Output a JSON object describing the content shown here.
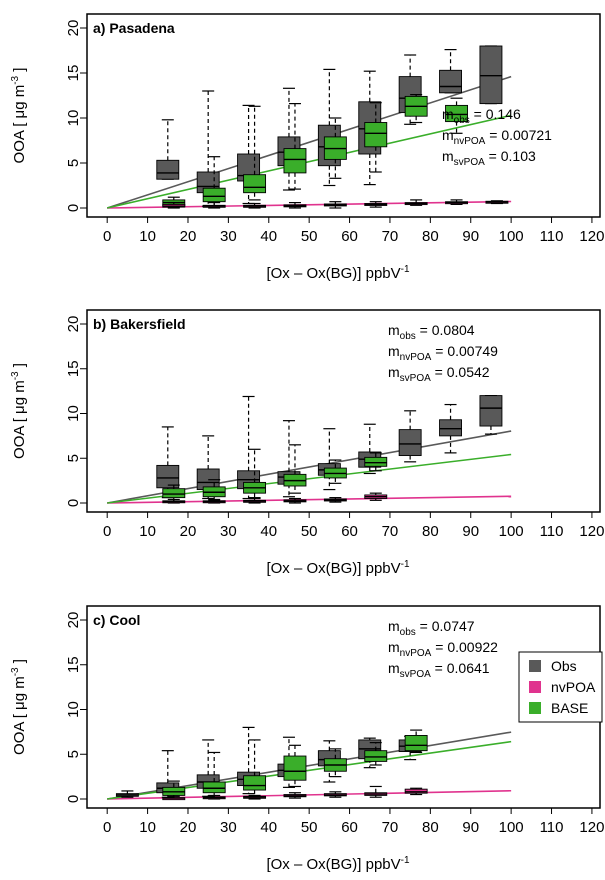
{
  "colors": {
    "obs": "#595959",
    "nvpoa": "#e0338e",
    "base": "#3aae2a"
  },
  "legend": [
    {
      "label": "Obs",
      "color": "#595959"
    },
    {
      "label": "nvPOA",
      "color": "#e0338e"
    },
    {
      "label": "BASE",
      "color": "#3aae2a"
    }
  ],
  "axis_labels": {
    "y": "OOA [ μg m",
    "y_sup": "-3",
    "y_end": " ]",
    "x": "[Ox – Ox(BG)] ppbV",
    "x_sup": "-1"
  },
  "chart_data": [
    {
      "type": "boxplot",
      "title": "a) Pasadena",
      "xlim": [
        0,
        120
      ],
      "ylim": [
        0,
        20
      ],
      "xticks": [
        "0",
        "10",
        "20",
        "30",
        "40",
        "50",
        "60",
        "70",
        "80",
        "90",
        "100",
        "110",
        "120"
      ],
      "yticks": [
        "0",
        "5",
        "10",
        "15",
        "20"
      ],
      "slopes": [
        {
          "base": "m",
          "sub": "obs",
          "value": "= 0.146",
          "color": "#595959",
          "m": 0.146
        },
        {
          "base": "m",
          "sub": "nvPOA",
          "value": "= 0.00721",
          "color": "#e0338e",
          "m": 0.00721
        },
        {
          "base": "m",
          "sub": "svPOA",
          "value": "= 0.103",
          "color": "#3aae2a",
          "m": 0.103
        }
      ],
      "series": [
        {
          "key": "obs",
          "boxes": [
            {
              "x": 15,
              "lo": 3.2,
              "q1": 3.2,
              "med": 3.9,
              "q3": 5.3,
              "hi": 9.8
            },
            {
              "x": 25,
              "lo": 0.2,
              "q1": 1.7,
              "med": 2.4,
              "q3": 4.0,
              "hi": 13.0
            },
            {
              "x": 35,
              "lo": 0.5,
              "q1": 3.0,
              "med": 3.6,
              "q3": 6.0,
              "hi": 11.4
            },
            {
              "x": 45,
              "lo": 2.0,
              "q1": 4.7,
              "med": 6.2,
              "q3": 7.9,
              "hi": 13.3
            },
            {
              "x": 55,
              "lo": 2.5,
              "q1": 4.7,
              "med": 6.8,
              "q3": 9.2,
              "hi": 15.4
            },
            {
              "x": 65,
              "lo": 2.6,
              "q1": 6.0,
              "med": 8.8,
              "q3": 11.8,
              "hi": 15.2
            },
            {
              "x": 75,
              "lo": 9.3,
              "q1": 10.6,
              "med": 12.2,
              "q3": 14.6,
              "hi": 17.0
            },
            {
              "x": 85,
              "lo": 12.8,
              "q1": 12.8,
              "med": 13.5,
              "q3": 15.3,
              "hi": 17.6
            },
            {
              "x": 95,
              "lo": 11.6,
              "q1": 11.6,
              "med": 14.7,
              "q3": 18.0,
              "hi": 18.0
            }
          ]
        },
        {
          "key": "nvpoa",
          "boxes": [
            {
              "x": 15,
              "lo": 0.0,
              "q1": 0.1,
              "med": 0.2,
              "q3": 0.4,
              "hi": 0.6
            },
            {
              "x": 25,
              "lo": 0.0,
              "q1": 0.1,
              "med": 0.2,
              "q3": 0.3,
              "hi": 0.6
            },
            {
              "x": 35,
              "lo": 0.0,
              "q1": 0.1,
              "med": 0.2,
              "q3": 0.3,
              "hi": 0.5
            },
            {
              "x": 45,
              "lo": 0.0,
              "q1": 0.2,
              "med": 0.25,
              "q3": 0.35,
              "hi": 0.6
            },
            {
              "x": 55,
              "lo": 0.0,
              "q1": 0.25,
              "med": 0.35,
              "q3": 0.45,
              "hi": 0.7
            },
            {
              "x": 65,
              "lo": 0.1,
              "q1": 0.3,
              "med": 0.4,
              "q3": 0.5,
              "hi": 0.7
            },
            {
              "x": 75,
              "lo": 0.3,
              "q1": 0.4,
              "med": 0.5,
              "q3": 0.6,
              "hi": 0.9
            },
            {
              "x": 85,
              "lo": 0.4,
              "q1": 0.5,
              "med": 0.6,
              "q3": 0.7,
              "hi": 0.9
            },
            {
              "x": 95,
              "lo": 0.5,
              "q1": 0.6,
              "med": 0.65,
              "q3": 0.75,
              "hi": 0.8
            }
          ]
        },
        {
          "key": "base",
          "boxes": [
            {
              "x": 15,
              "lo": 0.1,
              "q1": 0.2,
              "med": 0.6,
              "q3": 0.9,
              "hi": 1.2
            },
            {
              "x": 25,
              "lo": 0.2,
              "q1": 0.7,
              "med": 1.3,
              "q3": 2.2,
              "hi": 5.7
            },
            {
              "x": 35,
              "lo": 0.9,
              "q1": 1.7,
              "med": 2.3,
              "q3": 3.7,
              "hi": 11.3
            },
            {
              "x": 45,
              "lo": 2.1,
              "q1": 3.9,
              "med": 5.4,
              "q3": 6.6,
              "hi": 11.6
            },
            {
              "x": 55,
              "lo": 3.3,
              "q1": 5.4,
              "med": 6.6,
              "q3": 7.9,
              "hi": 10.0
            },
            {
              "x": 65,
              "lo": 4.0,
              "q1": 6.8,
              "med": 8.3,
              "q3": 9.5,
              "hi": 11.7
            },
            {
              "x": 75,
              "lo": 9.5,
              "q1": 10.2,
              "med": 11.3,
              "q3": 12.4,
              "hi": 12.6
            },
            {
              "x": 85,
              "lo": 8.3,
              "q1": 9.6,
              "med": 10.4,
              "q3": 11.4,
              "hi": 12.2
            }
          ]
        }
      ]
    },
    {
      "type": "boxplot",
      "title": "b) Bakersfield",
      "xlim": [
        0,
        120
      ],
      "ylim": [
        0,
        20
      ],
      "xticks": [
        "0",
        "10",
        "20",
        "30",
        "40",
        "50",
        "60",
        "70",
        "80",
        "90",
        "100",
        "110",
        "120"
      ],
      "yticks": [
        "0",
        "5",
        "10",
        "15",
        "20"
      ],
      "slopes": [
        {
          "base": "m",
          "sub": "obs",
          "value": "= 0.0804",
          "color": "#595959",
          "m": 0.0804
        },
        {
          "base": "m",
          "sub": "nvPOA",
          "value": "= 0.00749",
          "color": "#e0338e",
          "m": 0.00749
        },
        {
          "base": "m",
          "sub": "svPOA",
          "value": "= 0.0542",
          "color": "#3aae2a",
          "m": 0.0542
        }
      ],
      "series": [
        {
          "key": "obs",
          "boxes": [
            {
              "x": 15,
              "lo": 0.6,
              "q1": 1.7,
              "med": 2.8,
              "q3": 4.2,
              "hi": 8.5
            },
            {
              "x": 25,
              "lo": 0.5,
              "q1": 1.5,
              "med": 2.3,
              "q3": 3.8,
              "hi": 7.5
            },
            {
              "x": 35,
              "lo": 0.5,
              "q1": 1.6,
              "med": 2.6,
              "q3": 3.6,
              "hi": 11.9
            },
            {
              "x": 45,
              "lo": 0.7,
              "q1": 2.1,
              "med": 2.9,
              "q3": 3.5,
              "hi": 9.2
            },
            {
              "x": 55,
              "lo": 1.5,
              "q1": 3.1,
              "med": 3.7,
              "q3": 4.4,
              "hi": 8.3
            },
            {
              "x": 65,
              "lo": 3.3,
              "q1": 4.0,
              "med": 4.9,
              "q3": 5.7,
              "hi": 8.8
            },
            {
              "x": 75,
              "lo": 4.6,
              "q1": 5.3,
              "med": 6.6,
              "q3": 8.2,
              "hi": 10.3
            },
            {
              "x": 85,
              "lo": 5.6,
              "q1": 7.5,
              "med": 8.3,
              "q3": 9.3,
              "hi": 11.0
            },
            {
              "x": 95,
              "lo": 7.7,
              "q1": 8.6,
              "med": 10.6,
              "q3": 12.0,
              "hi": 12.0
            }
          ]
        },
        {
          "key": "nvpoa",
          "boxes": [
            {
              "x": 15,
              "lo": 0.0,
              "q1": 0.1,
              "med": 0.15,
              "q3": 0.25,
              "hi": 0.4
            },
            {
              "x": 25,
              "lo": 0.0,
              "q1": 0.1,
              "med": 0.15,
              "q3": 0.25,
              "hi": 0.4
            },
            {
              "x": 35,
              "lo": 0.0,
              "q1": 0.1,
              "med": 0.2,
              "q3": 0.3,
              "hi": 0.5
            },
            {
              "x": 45,
              "lo": 0.0,
              "q1": 0.15,
              "med": 0.25,
              "q3": 0.35,
              "hi": 0.5
            },
            {
              "x": 55,
              "lo": 0.1,
              "q1": 0.25,
              "med": 0.35,
              "q3": 0.45,
              "hi": 0.6
            },
            {
              "x": 65,
              "lo": 0.3,
              "q1": 0.5,
              "med": 0.7,
              "q3": 0.9,
              "hi": 1.1
            }
          ]
        },
        {
          "key": "base",
          "boxes": [
            {
              "x": 15,
              "lo": 0.2,
              "q1": 0.6,
              "med": 1.0,
              "q3": 1.6,
              "hi": 2.0
            },
            {
              "x": 25,
              "lo": 0.3,
              "q1": 0.7,
              "med": 1.2,
              "q3": 1.8,
              "hi": 2.6
            },
            {
              "x": 35,
              "lo": 0.6,
              "q1": 1.1,
              "med": 1.7,
              "q3": 2.3,
              "hi": 6.0
            },
            {
              "x": 45,
              "lo": 1.1,
              "q1": 1.9,
              "med": 2.5,
              "q3": 3.2,
              "hi": 6.5
            },
            {
              "x": 55,
              "lo": 2.2,
              "q1": 2.8,
              "med": 3.3,
              "q3": 3.9,
              "hi": 4.8
            },
            {
              "x": 65,
              "lo": 3.6,
              "q1": 4.1,
              "med": 4.5,
              "q3": 5.1,
              "hi": 5.6
            }
          ]
        }
      ]
    },
    {
      "type": "boxplot",
      "title": "c) Cool",
      "xlim": [
        0,
        120
      ],
      "ylim": [
        0,
        20
      ],
      "xticks": [
        "0",
        "10",
        "20",
        "30",
        "40",
        "50",
        "60",
        "70",
        "80",
        "90",
        "100",
        "110",
        "120"
      ],
      "yticks": [
        "0",
        "5",
        "10",
        "15",
        "20"
      ],
      "slopes": [
        {
          "base": "m",
          "sub": "obs",
          "value": "= 0.0747",
          "color": "#595959",
          "m": 0.0747
        },
        {
          "base": "m",
          "sub": "nvPOA",
          "value": "= 0.00922",
          "color": "#e0338e",
          "m": 0.00922
        },
        {
          "base": "m",
          "sub": "svPOA",
          "value": "= 0.0641",
          "color": "#3aae2a",
          "m": 0.0641
        }
      ],
      "series": [
        {
          "key": "obs",
          "boxes": [
            {
              "x": 5,
              "lo": 0.2,
              "q1": 0.3,
              "med": 0.45,
              "q3": 0.6,
              "hi": 0.9
            },
            {
              "x": 15,
              "lo": 0.2,
              "q1": 0.7,
              "med": 1.2,
              "q3": 1.8,
              "hi": 5.4
            },
            {
              "x": 25,
              "lo": 0.3,
              "q1": 1.2,
              "med": 1.9,
              "q3": 2.7,
              "hi": 6.6
            },
            {
              "x": 35,
              "lo": 0.6,
              "q1": 1.5,
              "med": 2.2,
              "q3": 3.0,
              "hi": 8.0
            },
            {
              "x": 45,
              "lo": 1.3,
              "q1": 2.5,
              "med": 3.2,
              "q3": 3.9,
              "hi": 6.9
            },
            {
              "x": 55,
              "lo": 1.9,
              "q1": 3.7,
              "med": 4.4,
              "q3": 5.4,
              "hi": 6.5
            },
            {
              "x": 65,
              "lo": 3.5,
              "q1": 4.5,
              "med": 5.6,
              "q3": 6.6,
              "hi": 6.8
            },
            {
              "x": 75,
              "lo": 4.4,
              "q1": 5.3,
              "med": 5.9,
              "q3": 6.6,
              "hi": 7.0
            }
          ]
        },
        {
          "key": "nvpoa",
          "boxes": [
            {
              "x": 15,
              "lo": 0.0,
              "q1": 0.05,
              "med": 0.1,
              "q3": 0.15,
              "hi": 0.3
            },
            {
              "x": 25,
              "lo": 0.0,
              "q1": 0.1,
              "med": 0.15,
              "q3": 0.25,
              "hi": 0.4
            },
            {
              "x": 35,
              "lo": 0.0,
              "q1": 0.1,
              "med": 0.2,
              "q3": 0.3,
              "hi": 0.4
            },
            {
              "x": 45,
              "lo": 0.1,
              "q1": 0.25,
              "med": 0.35,
              "q3": 0.5,
              "hi": 0.7
            },
            {
              "x": 55,
              "lo": 0.2,
              "q1": 0.35,
              "med": 0.45,
              "q3": 0.6,
              "hi": 0.8
            },
            {
              "x": 65,
              "lo": 0.2,
              "q1": 0.4,
              "med": 0.55,
              "q3": 0.7,
              "hi": 1.4
            },
            {
              "x": 75,
              "lo": 0.5,
              "q1": 0.65,
              "med": 0.8,
              "q3": 1.1,
              "hi": 1.2
            }
          ]
        },
        {
          "key": "base",
          "boxes": [
            {
              "x": 15,
              "lo": 0.1,
              "q1": 0.4,
              "med": 0.8,
              "q3": 1.3,
              "hi": 2.0
            },
            {
              "x": 25,
              "lo": 0.2,
              "q1": 0.7,
              "med": 1.2,
              "q3": 1.9,
              "hi": 5.2
            },
            {
              "x": 35,
              "lo": 0.3,
              "q1": 1.0,
              "med": 1.5,
              "q3": 2.6,
              "hi": 6.6
            },
            {
              "x": 45,
              "lo": 1.4,
              "q1": 2.1,
              "med": 3.1,
              "q3": 4.8,
              "hi": 6.0
            },
            {
              "x": 55,
              "lo": 2.5,
              "q1": 3.1,
              "med": 3.8,
              "q3": 4.5,
              "hi": 5.6
            },
            {
              "x": 65,
              "lo": 3.8,
              "q1": 4.2,
              "med": 4.7,
              "q3": 5.4,
              "hi": 6.3
            },
            {
              "x": 75,
              "lo": 5.2,
              "q1": 5.4,
              "med": 6.0,
              "q3": 7.1,
              "hi": 7.7
            }
          ]
        }
      ]
    }
  ]
}
